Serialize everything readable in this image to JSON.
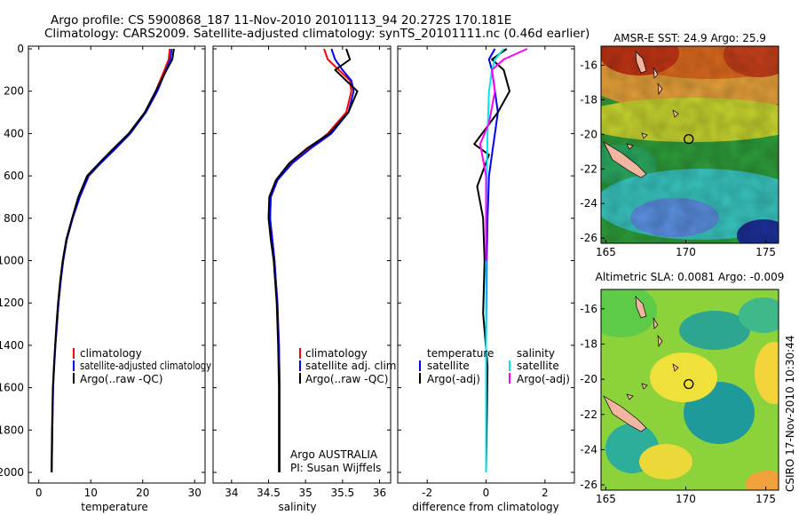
{
  "header": {
    "line1": "Argo profile: CS 5900868_187 11-Nov-2010 20101113_94 20.272S 170.181E",
    "line2": "Climatology: CARS2009. Satellite-adjusted climatology: synTS_20101111.nc (0.46d earlier)"
  },
  "credit": {
    "agency": "Argo AUSTRALIA",
    "pi": "PI: Susan Wijffels"
  },
  "side_label": "CSIRO 17-Nov-2010 10:30:44",
  "colors": {
    "climatology": "#ff0000",
    "satellite": "#0000ff",
    "argo": "#000000",
    "sat_salinity": "#00e5ee",
    "argo_salinity": "#ff00ff",
    "land": "#f2b5a0"
  },
  "chart_data": [
    {
      "type": "line",
      "title": "",
      "xlabel": "temperature",
      "ylabel": "",
      "xlim": [
        -2,
        32
      ],
      "ylim": [
        0,
        2050
      ],
      "xticks": [
        0,
        10,
        20,
        30
      ],
      "yticks": [
        0,
        200,
        400,
        600,
        800,
        1000,
        1200,
        1400,
        1600,
        1800,
        2000
      ],
      "legend": [
        "climatology",
        "satellite-adjusted climatology",
        "Argo(..raw -QC)"
      ],
      "legend_position": "lower-right",
      "series": [
        {
          "name": "climatology",
          "color": "#ff0000",
          "x": [
            25.2,
            25.0,
            24.2,
            22.5,
            20.5,
            17.5,
            14.2,
            11.8,
            9.6,
            7.8,
            6.5,
            5.4,
            4.7,
            4.2,
            3.8,
            3.5,
            3.2,
            2.95,
            2.75,
            2.6,
            2.5
          ],
          "y": [
            0,
            50,
            100,
            200,
            300,
            400,
            480,
            540,
            600,
            700,
            800,
            900,
            1000,
            1100,
            1200,
            1300,
            1400,
            1500,
            1600,
            1800,
            2000
          ]
        },
        {
          "name": "satellite-adjusted climatology",
          "color": "#0000ff",
          "x": [
            25.6,
            25.3,
            24.5,
            22.8,
            20.6,
            17.6,
            14.4,
            11.9,
            9.6,
            7.9,
            6.5,
            5.4,
            4.7,
            4.2,
            3.8,
            3.5,
            3.2,
            2.95,
            2.75,
            2.6,
            2.5
          ],
          "y": [
            0,
            50,
            100,
            200,
            300,
            400,
            480,
            540,
            600,
            700,
            800,
            900,
            1000,
            1100,
            1200,
            1300,
            1400,
            1500,
            1600,
            1800,
            2000
          ]
        },
        {
          "name": "Argo(..raw -QC)",
          "color": "#000000",
          "x": [
            26.0,
            25.7,
            24.6,
            22.5,
            20.4,
            17.3,
            14.0,
            11.6,
            9.3,
            7.6,
            6.4,
            5.3,
            4.6,
            4.1,
            3.7,
            3.4,
            3.15,
            2.9,
            2.7,
            2.55,
            2.45
          ],
          "y": [
            0,
            50,
            100,
            200,
            300,
            400,
            480,
            540,
            600,
            700,
            800,
            900,
            1000,
            1100,
            1200,
            1300,
            1400,
            1500,
            1600,
            1800,
            2000
          ]
        }
      ]
    },
    {
      "type": "line",
      "title": "",
      "xlabel": "salinity",
      "ylabel": "",
      "xlim": [
        33.75,
        36.15
      ],
      "ylim": [
        0,
        2050
      ],
      "xticks": [
        34,
        34.5,
        35,
        35.5,
        36
      ],
      "yticks": [
        0,
        200,
        400,
        600,
        800,
        1000,
        1200,
        1400,
        1600,
        1800,
        2000
      ],
      "legend": [
        "climatology",
        "satellite adj. clim.",
        "Argo(..raw -QC)"
      ],
      "legend_position": "lower-right",
      "series": [
        {
          "name": "climatology",
          "color": "#ff0000",
          "x": [
            35.25,
            35.3,
            35.45,
            35.6,
            35.62,
            35.55,
            35.3,
            35.05,
            34.8,
            34.62,
            34.53,
            34.52,
            34.55,
            34.58,
            34.6,
            34.62,
            34.63,
            34.64,
            34.65,
            34.65
          ],
          "y": [
            0,
            50,
            100,
            150,
            200,
            300,
            400,
            470,
            540,
            620,
            700,
            800,
            900,
            1000,
            1100,
            1200,
            1300,
            1400,
            1600,
            2000
          ]
        },
        {
          "name": "satellite adj. clim.",
          "color": "#0000ff",
          "x": [
            35.35,
            35.4,
            35.5,
            35.62,
            35.65,
            35.58,
            35.35,
            35.07,
            34.82,
            34.62,
            34.53,
            34.52,
            34.55,
            34.58,
            34.6,
            34.62,
            34.63,
            34.64,
            34.65,
            34.65
          ],
          "y": [
            0,
            50,
            100,
            150,
            200,
            300,
            400,
            470,
            540,
            620,
            700,
            800,
            900,
            1000,
            1100,
            1200,
            1300,
            1400,
            1600,
            2000
          ]
        },
        {
          "name": "Argo(..raw -QC)",
          "color": "#000000",
          "x": [
            35.55,
            35.6,
            35.4,
            35.55,
            35.7,
            35.58,
            35.32,
            35.02,
            34.78,
            34.6,
            34.51,
            34.5,
            34.53,
            34.57,
            34.59,
            34.61,
            34.62,
            34.63,
            34.64,
            34.64
          ],
          "y": [
            0,
            50,
            100,
            150,
            200,
            300,
            400,
            470,
            540,
            620,
            700,
            800,
            900,
            1000,
            1100,
            1200,
            1300,
            1400,
            1600,
            2000
          ]
        }
      ]
    },
    {
      "type": "line",
      "title": "",
      "xlabel": "difference from climatology",
      "ylabel": "",
      "xlim": [
        -3,
        3
      ],
      "ylim": [
        0,
        2050
      ],
      "xticks": [
        -2,
        0,
        2
      ],
      "yticks": [
        0,
        200,
        400,
        600,
        800,
        1000,
        1200,
        1400,
        1600,
        1800,
        2000
      ],
      "legend_groups": [
        {
          "title": "temperature",
          "entries": [
            "satellite",
            "Argo(-adj)"
          ]
        },
        {
          "title": "salinity",
          "entries": [
            "satellite",
            "Argo(-adj)"
          ]
        }
      ],
      "legend_position": "lower",
      "series": [
        {
          "name": "temperature satellite",
          "color": "#0000ff",
          "x": [
            0.3,
            0.1,
            0.2,
            0.3,
            0.4,
            0.3,
            0.2,
            0.1,
            0.05,
            0.02,
            0.0,
            0.0,
            0.0
          ],
          "y": [
            0,
            50,
            100,
            200,
            300,
            400,
            500,
            600,
            800,
            1000,
            1400,
            1800,
            2000
          ]
        },
        {
          "name": "temperature Argo(-adj)",
          "color": "#000000",
          "x": [
            0.7,
            0.2,
            0.6,
            0.8,
            0.4,
            -0.4,
            0.1,
            -0.3,
            -0.1,
            -0.05,
            -0.1,
            0.05,
            0.0
          ],
          "y": [
            0,
            50,
            100,
            200,
            300,
            450,
            500,
            650,
            800,
            1000,
            1250,
            1500,
            2000
          ]
        },
        {
          "name": "salinity satellite",
          "color": "#00e5ee",
          "x": [
            0.6,
            0.3,
            0.2,
            0.1,
            0.05,
            0.02,
            0.0,
            0.0,
            0.0
          ],
          "y": [
            0,
            50,
            100,
            200,
            400,
            600,
            800,
            1400,
            2000
          ]
        },
        {
          "name": "salinity Argo(-adj)",
          "color": "#ff00ff",
          "x": [
            1.4,
            0.6,
            0.2,
            0.3,
            0.1,
            -0.2,
            0.0,
            0.0
          ],
          "y": [
            0,
            50,
            100,
            200,
            350,
            450,
            600,
            1000
          ]
        }
      ]
    },
    {
      "type": "heatmap",
      "title": "AMSR-E SST: 24.9 Argo: 25.9",
      "xlim": [
        164.7,
        175.8
      ],
      "ylim": [
        -26.3,
        -14.9
      ],
      "xticks": [
        165,
        170,
        175
      ],
      "yticks": [
        -16,
        -18,
        -20,
        -22,
        -24,
        -26
      ],
      "colormap": "jet",
      "float_position": {
        "lon": 170.181,
        "lat": -20.272
      }
    },
    {
      "type": "heatmap",
      "title": "Altimetric SLA: 0.0081 Argo: -0.009",
      "xlim": [
        164.7,
        175.8
      ],
      "ylim": [
        -26.3,
        -14.9
      ],
      "xticks": [
        165,
        170,
        175
      ],
      "yticks": [
        -16,
        -18,
        -20,
        -22,
        -24,
        -26
      ],
      "colormap": "jet",
      "float_position": {
        "lon": 170.181,
        "lat": -20.272
      }
    }
  ]
}
